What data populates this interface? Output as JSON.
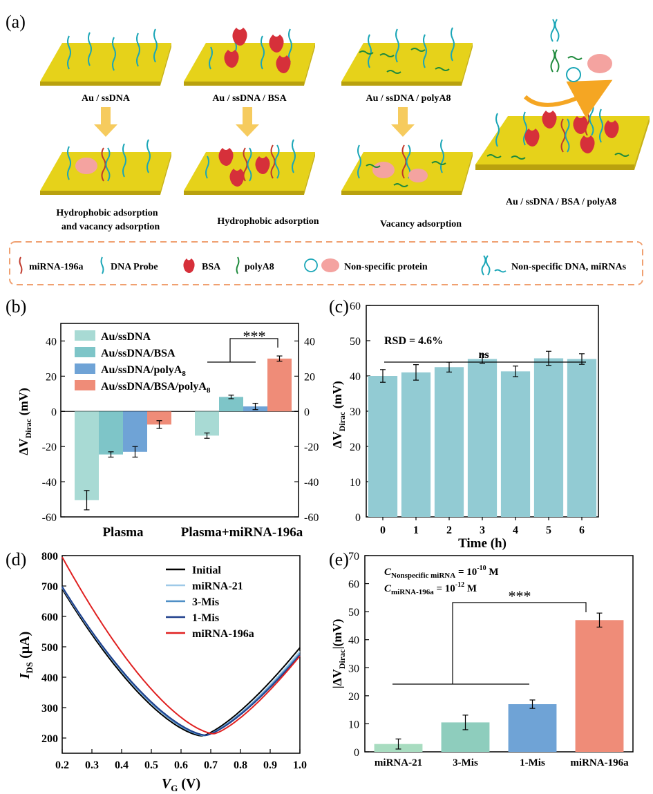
{
  "figure": {
    "panels": {
      "a": "(a)",
      "b": "(b)",
      "c": "(c)",
      "d": "(d)",
      "e": "(e)"
    }
  },
  "schematic": {
    "steps": [
      {
        "label": "Au / ssDNA",
        "adsorption": [
          "Hydrophobic adsorption",
          "and vacancy adsorption"
        ]
      },
      {
        "label": "Au / ssDNA / BSA",
        "adsorption": [
          "Hydrophobic adsorption"
        ]
      },
      {
        "label": "Au / ssDNA / polyA8",
        "adsorption": [
          "Vacancy adsorption"
        ]
      }
    ],
    "final_label": "Au / ssDNA / BSA / polyA8",
    "legend": [
      "miRNA-196a",
      "DNA Probe",
      "BSA",
      "polyA8",
      "Non-specific protein",
      "Non-specific DNA, miRNAs"
    ],
    "colors": {
      "gold": "#e6d21a",
      "gold_side": "#b9a10e",
      "dna": "#1aa6b7",
      "mirna": "#c0392b",
      "bsa": "#d6303a",
      "polya": "#1e8a3c",
      "protein": "#f08080",
      "arrow": "#f5c242",
      "dash": "#f0a070"
    }
  },
  "chart_data": [
    {
      "panel": "b",
      "type": "bar",
      "categories": [
        "Plasma",
        "Plasma+miRNA-196a"
      ],
      "series": [
        {
          "name": "Au/ssDNA",
          "values": [
            -50.5,
            -13.8
          ],
          "errors": [
            5.5,
            1.5
          ],
          "color": "#a8dad4"
        },
        {
          "name": "Au/ssDNA/BSA",
          "values": [
            -24.5,
            8.2
          ],
          "errors": [
            1.5,
            1.0
          ],
          "color": "#7ec5c8"
        },
        {
          "name": "Au/ssDNA/polyA8",
          "values": [
            -23.0,
            2.8
          ],
          "errors": [
            3.0,
            1.8
          ],
          "color": "#6fa3d6"
        },
        {
          "name": "Au/ssDNA/BSA/polyA8",
          "values": [
            -7.5,
            30.0
          ],
          "errors": [
            2.2,
            1.5
          ],
          "color": "#ef8c78"
        }
      ],
      "ylim": [
        -60,
        50
      ],
      "left_ticks": [
        "40",
        "20",
        "0",
        "-20",
        "-40",
        "-60"
      ],
      "right_ticks": [
        "40",
        "20",
        "0",
        "-20",
        "-40",
        "-60"
      ],
      "significance": "***",
      "ylabel": "ΔV",
      "ylabel_sub": "Dirac",
      "ylabel_unit": " (mV)",
      "legend_position": "top-left"
    },
    {
      "panel": "c",
      "type": "bar",
      "categories": [
        "0",
        "1",
        "2",
        "3",
        "4",
        "5",
        "6"
      ],
      "values": [
        40.0,
        41.0,
        42.5,
        44.8,
        41.3,
        45.0,
        44.8
      ],
      "errors": [
        1.8,
        2.2,
        1.4,
        1.2,
        1.5,
        2.0,
        1.5
      ],
      "color": "#92cbd3",
      "ylim": [
        0,
        60
      ],
      "ticks": [
        "0",
        "10",
        "20",
        "30",
        "40",
        "50",
        "60"
      ],
      "annotation": "RSD = 4.6%",
      "significance": "ns",
      "xlabel": "Time (h)",
      "ylabel": "ΔV",
      "ylabel_sub": "Dirac",
      "ylabel_unit": " (mV)"
    },
    {
      "panel": "d",
      "type": "line",
      "xlim": [
        0.2,
        1.0
      ],
      "ylim": [
        150,
        800
      ],
      "xticks": [
        "0.2",
        "0.3",
        "0.4",
        "0.5",
        "0.6",
        "0.7",
        "0.8",
        "0.9",
        "1.0"
      ],
      "yticks": [
        "200",
        "300",
        "400",
        "500",
        "600",
        "700",
        "800"
      ],
      "series": [
        {
          "name": "Initial",
          "color": "#000000",
          "y0": 690,
          "vmin": 0.67,
          "imin": 207,
          "y1": 497
        },
        {
          "name": "miRNA-21",
          "color": "#9ec9e8",
          "y0": 695,
          "vmin": 0.68,
          "imin": 208,
          "y1": 485
        },
        {
          "name": "3-Mis",
          "color": "#4f8fc6",
          "y0": 698,
          "vmin": 0.68,
          "imin": 208,
          "y1": 478
        },
        {
          "name": "1-Mis",
          "color": "#1f3f8c",
          "y0": 697,
          "vmin": 0.685,
          "imin": 209,
          "y1": 473
        },
        {
          "name": "miRNA-196a",
          "color": "#e02020",
          "y0": 795,
          "vmin": 0.71,
          "imin": 214,
          "y1": 470
        }
      ],
      "xlabel": "V",
      "xlabel_sub": "G",
      "xlabel_unit": " (V)",
      "ylabel": "I",
      "ylabel_sub": "DS",
      "ylabel_unit": " (μA)"
    },
    {
      "panel": "e",
      "type": "bar",
      "categories": [
        "miRNA-21",
        "3-Mis",
        "1-Mis",
        "miRNA-196a"
      ],
      "values": [
        2.8,
        10.5,
        17.0,
        47.0
      ],
      "errors": [
        1.8,
        2.6,
        1.5,
        2.5
      ],
      "colors": [
        "#a8dcc0",
        "#8ecdbd",
        "#6fa3d6",
        "#ef8c78"
      ],
      "ylim": [
        0,
        70
      ],
      "ticks": [
        "0",
        "10",
        "20",
        "30",
        "40",
        "50",
        "60",
        "70"
      ],
      "significance": "***",
      "ylabel": "|ΔV",
      "ylabel_sub": "Dirac",
      "ylabel_unit": "|(mV)",
      "conc": [
        {
          "c": "C",
          "sub": "Nonspecific miRNA",
          "eq": " = 10",
          "exp": "-10",
          "unit": " M"
        },
        {
          "c": "C",
          "sub": "miRNA-196a",
          "eq": " = 10",
          "exp": "-12",
          "unit": " M"
        }
      ]
    }
  ]
}
